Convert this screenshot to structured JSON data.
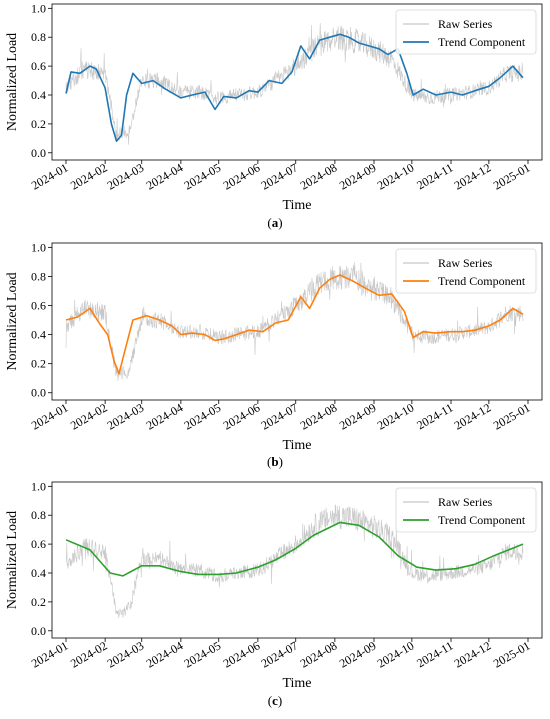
{
  "x_ticks": [
    "2024-01",
    "2024-02",
    "2024-03",
    "2024-04",
    "2024-05",
    "2024-06",
    "2024-07",
    "2024-08",
    "2024-09",
    "2024-10",
    "2024-11",
    "2024-12",
    "2025-01"
  ],
  "y_ticks": [
    "0.0",
    "0.2",
    "0.4",
    "0.6",
    "0.8",
    "1.0"
  ],
  "chart_data": [
    {
      "type": "line",
      "caption": "(a)",
      "xlabel": "Time",
      "ylabel": "Normalized Load",
      "ylim": [
        -0.05,
        1.03
      ],
      "x_range": [
        "2024-01-01",
        "2025-01-01"
      ],
      "legend_position": "top-right",
      "colors": {
        "raw": "#c8c8c8",
        "trend": "#1f77b4"
      },
      "series": [
        {
          "name": "Raw Series",
          "x": [
            "2024-01-01",
            "2024-01-15",
            "2024-02-01",
            "2024-02-10",
            "2024-02-20",
            "2024-03-01",
            "2024-03-15",
            "2024-04-01",
            "2024-04-15",
            "2024-05-01",
            "2024-05-15",
            "2024-06-01",
            "2024-06-15",
            "2024-07-01",
            "2024-07-15",
            "2024-08-01",
            "2024-08-15",
            "2024-09-01",
            "2024-09-15",
            "2024-10-01",
            "2024-10-15",
            "2024-11-01",
            "2024-11-15",
            "2024-12-01",
            "2024-12-15",
            "2024-12-28"
          ],
          "values": [
            0.45,
            0.58,
            0.55,
            0.12,
            0.15,
            0.5,
            0.5,
            0.42,
            0.42,
            0.38,
            0.4,
            0.42,
            0.5,
            0.6,
            0.72,
            0.8,
            0.78,
            0.72,
            0.65,
            0.4,
            0.38,
            0.4,
            0.42,
            0.45,
            0.55,
            0.55
          ]
        },
        {
          "name": "Trend Component",
          "x": [
            "2024-01-01",
            "2024-01-05",
            "2024-01-12",
            "2024-01-20",
            "2024-01-25",
            "2024-02-01",
            "2024-02-06",
            "2024-02-10",
            "2024-02-14",
            "2024-02-18",
            "2024-02-23",
            "2024-03-01",
            "2024-03-10",
            "2024-03-20",
            "2024-04-01",
            "2024-04-10",
            "2024-04-20",
            "2024-04-28",
            "2024-05-05",
            "2024-05-15",
            "2024-05-25",
            "2024-06-01",
            "2024-06-10",
            "2024-06-20",
            "2024-06-28",
            "2024-07-05",
            "2024-07-12",
            "2024-07-20",
            "2024-07-28",
            "2024-08-05",
            "2024-08-12",
            "2024-08-20",
            "2024-08-28",
            "2024-09-05",
            "2024-09-12",
            "2024-09-20",
            "2024-09-27",
            "2024-10-02",
            "2024-10-10",
            "2024-10-20",
            "2024-11-01",
            "2024-11-10",
            "2024-11-20",
            "2024-12-01",
            "2024-12-10",
            "2024-12-20",
            "2024-12-28"
          ],
          "values": [
            0.41,
            0.56,
            0.55,
            0.6,
            0.58,
            0.45,
            0.2,
            0.08,
            0.12,
            0.4,
            0.55,
            0.48,
            0.5,
            0.44,
            0.38,
            0.4,
            0.42,
            0.3,
            0.39,
            0.38,
            0.43,
            0.42,
            0.5,
            0.48,
            0.56,
            0.74,
            0.65,
            0.78,
            0.8,
            0.82,
            0.8,
            0.76,
            0.74,
            0.72,
            0.68,
            0.72,
            0.55,
            0.4,
            0.44,
            0.4,
            0.42,
            0.4,
            0.43,
            0.46,
            0.52,
            0.6,
            0.52
          ]
        }
      ]
    },
    {
      "type": "line",
      "caption": "(b)",
      "xlabel": "Time",
      "ylabel": "Normalized Load",
      "ylim": [
        -0.05,
        1.03
      ],
      "x_range": [
        "2024-01-01",
        "2025-01-01"
      ],
      "legend_position": "top-right",
      "colors": {
        "raw": "#c8c8c8",
        "trend": "#ff7f0e"
      },
      "series": [
        {
          "name": "Raw Series",
          "x": [
            "2024-01-01",
            "2024-01-15",
            "2024-02-01",
            "2024-02-10",
            "2024-02-20",
            "2024-03-01",
            "2024-03-15",
            "2024-04-01",
            "2024-04-15",
            "2024-05-01",
            "2024-05-15",
            "2024-06-01",
            "2024-06-15",
            "2024-07-01",
            "2024-07-15",
            "2024-08-01",
            "2024-08-15",
            "2024-09-01",
            "2024-09-15",
            "2024-10-01",
            "2024-10-15",
            "2024-11-01",
            "2024-11-15",
            "2024-12-01",
            "2024-12-15",
            "2024-12-28"
          ],
          "values": [
            0.45,
            0.58,
            0.55,
            0.12,
            0.15,
            0.5,
            0.5,
            0.42,
            0.42,
            0.38,
            0.4,
            0.42,
            0.5,
            0.6,
            0.72,
            0.8,
            0.78,
            0.72,
            0.65,
            0.4,
            0.38,
            0.4,
            0.42,
            0.45,
            0.55,
            0.55
          ]
        },
        {
          "name": "Trend Component",
          "x": [
            "2024-01-01",
            "2024-01-10",
            "2024-01-20",
            "2024-01-28",
            "2024-02-03",
            "2024-02-08",
            "2024-02-12",
            "2024-02-17",
            "2024-02-23",
            "2024-03-05",
            "2024-03-15",
            "2024-03-25",
            "2024-04-01",
            "2024-04-10",
            "2024-04-20",
            "2024-04-28",
            "2024-05-05",
            "2024-05-15",
            "2024-05-25",
            "2024-06-05",
            "2024-06-15",
            "2024-06-25",
            "2024-07-05",
            "2024-07-12",
            "2024-07-20",
            "2024-07-28",
            "2024-08-05",
            "2024-08-15",
            "2024-08-25",
            "2024-09-05",
            "2024-09-15",
            "2024-09-25",
            "2024-10-02",
            "2024-10-10",
            "2024-10-20",
            "2024-11-01",
            "2024-11-10",
            "2024-11-20",
            "2024-12-01",
            "2024-12-10",
            "2024-12-20",
            "2024-12-28"
          ],
          "values": [
            0.5,
            0.52,
            0.58,
            0.47,
            0.4,
            0.22,
            0.13,
            0.3,
            0.5,
            0.53,
            0.5,
            0.46,
            0.4,
            0.41,
            0.4,
            0.36,
            0.37,
            0.4,
            0.43,
            0.42,
            0.48,
            0.5,
            0.66,
            0.58,
            0.72,
            0.78,
            0.81,
            0.77,
            0.72,
            0.67,
            0.68,
            0.56,
            0.38,
            0.42,
            0.41,
            0.42,
            0.42,
            0.43,
            0.46,
            0.5,
            0.58,
            0.54
          ]
        }
      ]
    },
    {
      "type": "line",
      "caption": "(c)",
      "xlabel": "Time",
      "ylabel": "Normalized Load",
      "ylim": [
        -0.05,
        1.03
      ],
      "x_range": [
        "2024-01-01",
        "2025-01-01"
      ],
      "legend_position": "top-right",
      "colors": {
        "raw": "#c8c8c8",
        "trend": "#2ca02c"
      },
      "series": [
        {
          "name": "Raw Series",
          "x": [
            "2024-01-01",
            "2024-01-15",
            "2024-02-01",
            "2024-02-10",
            "2024-02-20",
            "2024-03-01",
            "2024-03-15",
            "2024-04-01",
            "2024-04-15",
            "2024-05-01",
            "2024-05-15",
            "2024-06-01",
            "2024-06-15",
            "2024-07-01",
            "2024-07-15",
            "2024-08-01",
            "2024-08-15",
            "2024-09-01",
            "2024-09-15",
            "2024-10-01",
            "2024-10-15",
            "2024-11-01",
            "2024-11-15",
            "2024-12-01",
            "2024-12-15",
            "2024-12-28"
          ],
          "values": [
            0.45,
            0.58,
            0.55,
            0.12,
            0.15,
            0.5,
            0.5,
            0.42,
            0.42,
            0.38,
            0.4,
            0.42,
            0.5,
            0.6,
            0.72,
            0.8,
            0.78,
            0.72,
            0.65,
            0.4,
            0.38,
            0.4,
            0.42,
            0.45,
            0.55,
            0.55
          ]
        },
        {
          "name": "Trend Component",
          "x": [
            "2024-01-01",
            "2024-01-20",
            "2024-02-05",
            "2024-02-15",
            "2024-03-01",
            "2024-03-15",
            "2024-04-01",
            "2024-04-15",
            "2024-05-01",
            "2024-05-15",
            "2024-06-01",
            "2024-06-15",
            "2024-07-01",
            "2024-07-15",
            "2024-08-05",
            "2024-08-20",
            "2024-09-05",
            "2024-09-20",
            "2024-10-05",
            "2024-10-20",
            "2024-11-05",
            "2024-11-20",
            "2024-12-05",
            "2024-12-28"
          ],
          "values": [
            0.63,
            0.56,
            0.4,
            0.38,
            0.45,
            0.45,
            0.41,
            0.39,
            0.39,
            0.4,
            0.44,
            0.49,
            0.57,
            0.66,
            0.75,
            0.73,
            0.65,
            0.52,
            0.44,
            0.42,
            0.43,
            0.46,
            0.52,
            0.6
          ]
        }
      ]
    }
  ]
}
